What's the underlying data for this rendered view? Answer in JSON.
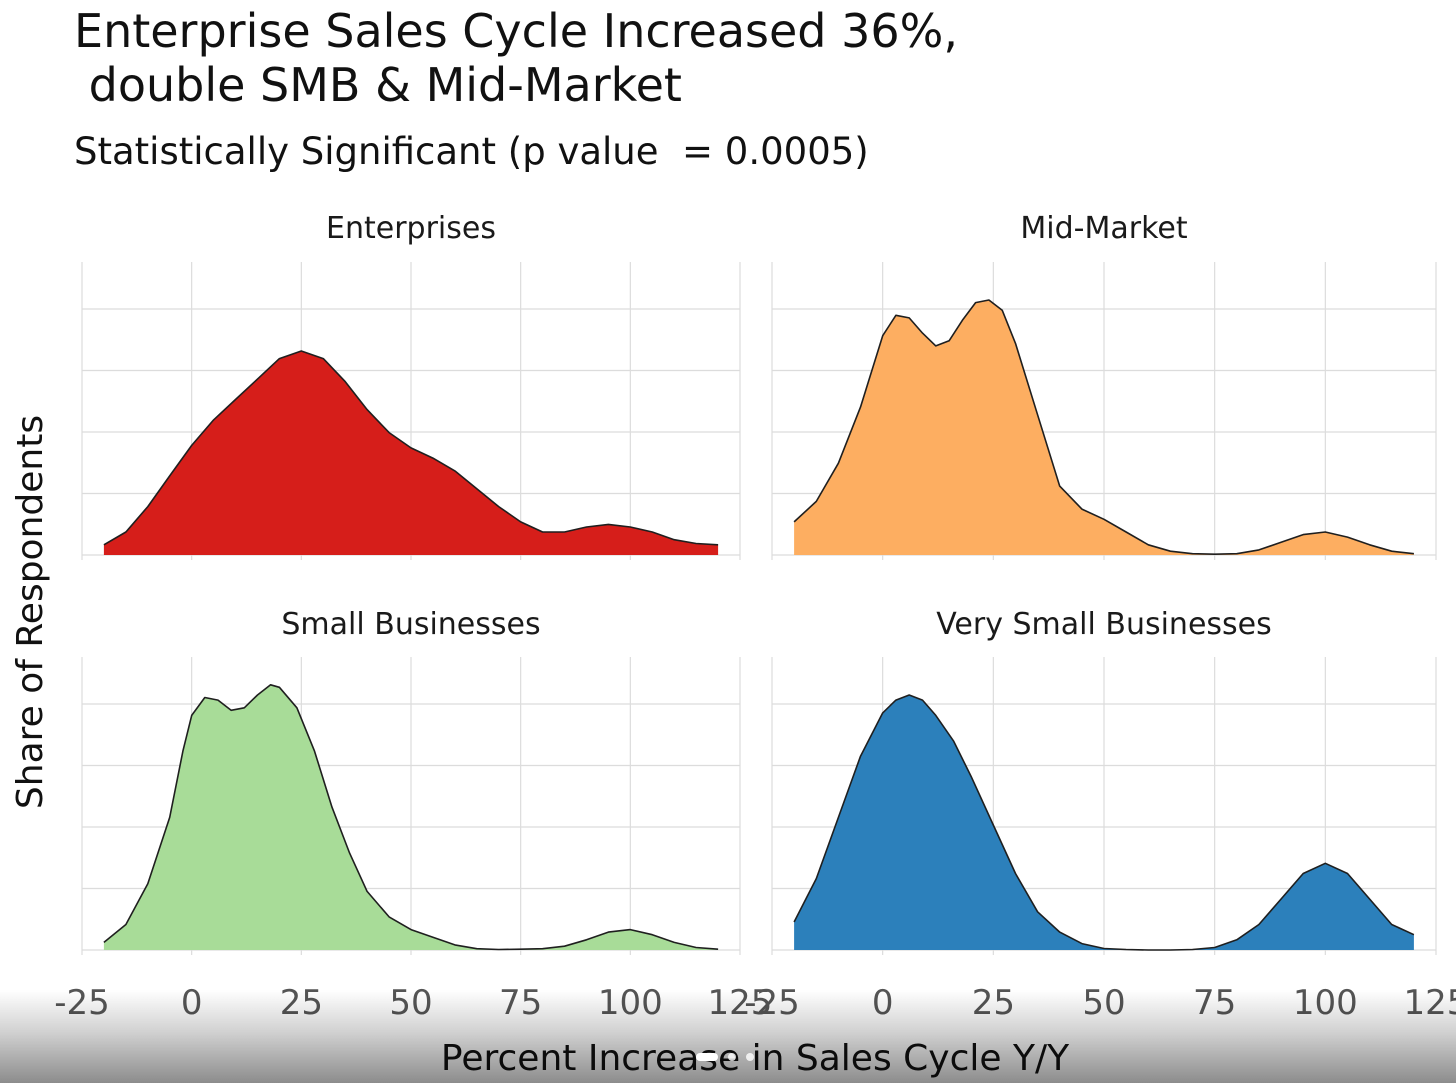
{
  "title": "Enterprise Sales Cycle Increased 36%,\n double SMB & Mid-Market",
  "subtitle": "Statistically Significant (p value  = 0.0005)",
  "chart_data": {
    "type": "area",
    "subtype": "density",
    "title": "Enterprise Sales Cycle Increased 36%,\n double SMB & Mid-Market",
    "subtitle": "Statistically Significant (p value  = 0.0005)",
    "xlabel": "Percent Increase in Sales Cycle Y/Y",
    "ylabel": "Share of Respondents",
    "xlim": [
      -25,
      125
    ],
    "ylim": [
      0,
      1
    ],
    "x_ticks": [
      "-25",
      "0",
      "25",
      "50",
      "75",
      "100",
      "125"
    ],
    "grid": true,
    "legend": "none",
    "facets": [
      {
        "name": "Enterprises",
        "color": "#d61e1a",
        "points": [
          [
            -20,
            0.04
          ],
          [
            -15,
            0.09
          ],
          [
            -10,
            0.19
          ],
          [
            -5,
            0.31
          ],
          [
            0,
            0.43
          ],
          [
            5,
            0.53
          ],
          [
            10,
            0.61
          ],
          [
            15,
            0.69
          ],
          [
            20,
            0.77
          ],
          [
            25,
            0.8
          ],
          [
            30,
            0.77
          ],
          [
            35,
            0.68
          ],
          [
            40,
            0.57
          ],
          [
            45,
            0.48
          ],
          [
            50,
            0.42
          ],
          [
            55,
            0.38
          ],
          [
            60,
            0.33
          ],
          [
            65,
            0.26
          ],
          [
            70,
            0.19
          ],
          [
            75,
            0.13
          ],
          [
            80,
            0.09
          ],
          [
            85,
            0.09
          ],
          [
            90,
            0.11
          ],
          [
            95,
            0.12
          ],
          [
            100,
            0.11
          ],
          [
            105,
            0.09
          ],
          [
            110,
            0.06
          ],
          [
            115,
            0.045
          ],
          [
            120,
            0.04
          ]
        ]
      },
      {
        "name": "Mid-Market",
        "color": "#fdae61",
        "points": [
          [
            -20,
            0.13
          ],
          [
            -15,
            0.21
          ],
          [
            -10,
            0.36
          ],
          [
            -5,
            0.58
          ],
          [
            0,
            0.86
          ],
          [
            3,
            0.94
          ],
          [
            6,
            0.93
          ],
          [
            9,
            0.87
          ],
          [
            12,
            0.82
          ],
          [
            15,
            0.84
          ],
          [
            18,
            0.92
          ],
          [
            21,
            0.99
          ],
          [
            24,
            1.0
          ],
          [
            27,
            0.96
          ],
          [
            30,
            0.83
          ],
          [
            35,
            0.55
          ],
          [
            40,
            0.27
          ],
          [
            45,
            0.18
          ],
          [
            50,
            0.14
          ],
          [
            55,
            0.09
          ],
          [
            60,
            0.04
          ],
          [
            65,
            0.015
          ],
          [
            70,
            0.005
          ],
          [
            75,
            0.003
          ],
          [
            80,
            0.005
          ],
          [
            85,
            0.02
          ],
          [
            90,
            0.05
          ],
          [
            95,
            0.08
          ],
          [
            100,
            0.09
          ],
          [
            105,
            0.07
          ],
          [
            110,
            0.04
          ],
          [
            115,
            0.015
          ],
          [
            120,
            0.005
          ]
        ]
      },
      {
        "name": "Small Businesses",
        "color": "#a8dc98",
        "points": [
          [
            -20,
            0.03
          ],
          [
            -15,
            0.1
          ],
          [
            -10,
            0.26
          ],
          [
            -5,
            0.52
          ],
          [
            -2,
            0.78
          ],
          [
            0,
            0.92
          ],
          [
            3,
            0.99
          ],
          [
            6,
            0.98
          ],
          [
            9,
            0.94
          ],
          [
            12,
            0.95
          ],
          [
            15,
            1.0
          ],
          [
            18,
            1.04
          ],
          [
            20,
            1.03
          ],
          [
            24,
            0.95
          ],
          [
            28,
            0.78
          ],
          [
            32,
            0.56
          ],
          [
            36,
            0.38
          ],
          [
            40,
            0.23
          ],
          [
            45,
            0.13
          ],
          [
            50,
            0.08
          ],
          [
            55,
            0.05
          ],
          [
            60,
            0.02
          ],
          [
            65,
            0.005
          ],
          [
            70,
            0.002
          ],
          [
            75,
            0.003
          ],
          [
            80,
            0.005
          ],
          [
            85,
            0.015
          ],
          [
            90,
            0.04
          ],
          [
            95,
            0.07
          ],
          [
            100,
            0.08
          ],
          [
            105,
            0.06
          ],
          [
            110,
            0.03
          ],
          [
            115,
            0.01
          ],
          [
            120,
            0.003
          ]
        ]
      },
      {
        "name": "Very Small Businesses",
        "color": "#2c80bb",
        "points": [
          [
            -20,
            0.11
          ],
          [
            -15,
            0.28
          ],
          [
            -10,
            0.52
          ],
          [
            -5,
            0.76
          ],
          [
            0,
            0.93
          ],
          [
            3,
            0.98
          ],
          [
            6,
            1.0
          ],
          [
            9,
            0.98
          ],
          [
            12,
            0.92
          ],
          [
            16,
            0.82
          ],
          [
            20,
            0.68
          ],
          [
            25,
            0.49
          ],
          [
            30,
            0.3
          ],
          [
            35,
            0.15
          ],
          [
            40,
            0.07
          ],
          [
            45,
            0.025
          ],
          [
            50,
            0.006
          ],
          [
            55,
            0.002
          ],
          [
            60,
            0.0
          ],
          [
            65,
            0.0
          ],
          [
            70,
            0.002
          ],
          [
            75,
            0.01
          ],
          [
            80,
            0.04
          ],
          [
            85,
            0.1
          ],
          [
            90,
            0.2
          ],
          [
            95,
            0.3
          ],
          [
            100,
            0.34
          ],
          [
            105,
            0.3
          ],
          [
            110,
            0.2
          ],
          [
            115,
            0.1
          ],
          [
            120,
            0.06
          ]
        ]
      }
    ]
  }
}
